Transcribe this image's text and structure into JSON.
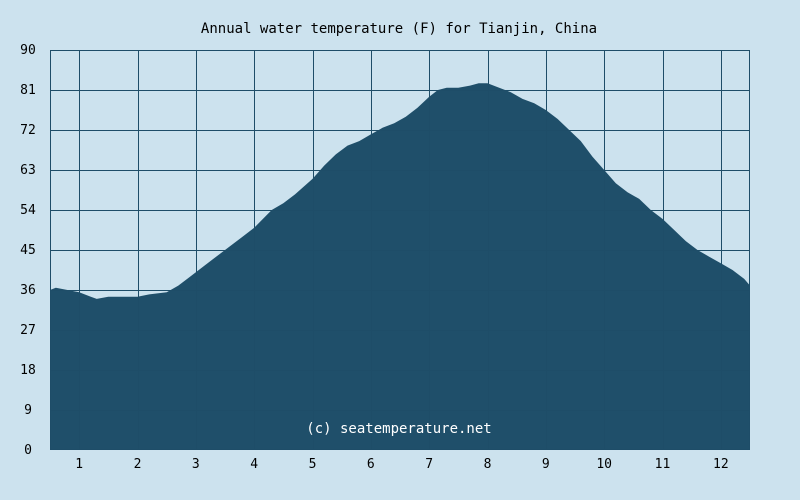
{
  "chart_data": {
    "type": "area",
    "title": "Annual water temperature (F) for Tianjin, China",
    "watermark": "(c) seatemperature.net",
    "xlabel": "",
    "ylabel": "",
    "ylim": [
      0,
      90
    ],
    "yticks": [
      0,
      9,
      18,
      27,
      36,
      45,
      54,
      63,
      72,
      81,
      90
    ],
    "xlim": [
      0.5,
      12.5
    ],
    "xticks": [
      1,
      2,
      3,
      4,
      5,
      6,
      7,
      8,
      9,
      10,
      11,
      12
    ],
    "grid": true,
    "colors": {
      "background": "#cce2ee",
      "fill": "#1f4f6a",
      "grid": "#1e4d68",
      "watermark": "#ffffff"
    },
    "series": [
      {
        "x": [
          0.5,
          0.6,
          0.8,
          1.0,
          1.2,
          1.3,
          1.5,
          1.7,
          2.0,
          2.2,
          2.5,
          2.7,
          2.9,
          3.1,
          3.3,
          3.5,
          3.8,
          4.0,
          4.3,
          4.5,
          4.7,
          5.0,
          5.2,
          5.4,
          5.6,
          5.8,
          6.0,
          6.2,
          6.4,
          6.6,
          6.8,
          7.0,
          7.15,
          7.3,
          7.5,
          7.7,
          7.85,
          8.0,
          8.2,
          8.4,
          8.6,
          8.8,
          9.0,
          9.2,
          9.4,
          9.6,
          9.8,
          10.0,
          10.2,
          10.4,
          10.6,
          10.8,
          11.0,
          11.2,
          11.4,
          11.6,
          11.8,
          12.0,
          12.2,
          12.4,
          12.5
        ],
        "y": [
          36,
          36.5,
          36,
          35.5,
          34.5,
          34,
          34.5,
          34.5,
          34.5,
          35,
          35.5,
          37,
          39,
          41,
          43,
          45,
          48,
          50,
          54,
          55.5,
          57.5,
          61,
          64,
          66.5,
          68.5,
          69.5,
          71,
          72.5,
          73.5,
          75,
          77,
          79.5,
          81,
          81.5,
          81.5,
          82,
          82.5,
          82.5,
          81.5,
          80.5,
          79,
          78,
          76.5,
          74.5,
          72,
          69.5,
          66,
          63,
          60,
          58,
          56.5,
          54,
          52,
          49.5,
          47,
          45,
          43.5,
          42,
          40.5,
          38.5,
          37
        ]
      }
    ]
  }
}
